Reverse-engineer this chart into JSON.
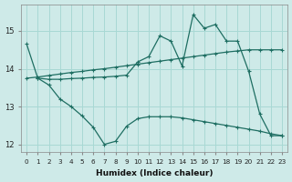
{
  "xlabel": "Humidex (Indice chaleur)",
  "bg_color": "#ceeae8",
  "grid_color": "#a8d8d4",
  "line_color": "#1e6e62",
  "xlim": [
    -0.5,
    23.5
  ],
  "ylim": [
    11.8,
    15.7
  ],
  "yticks": [
    12,
    13,
    14,
    15
  ],
  "xticks": [
    0,
    1,
    2,
    3,
    4,
    5,
    6,
    7,
    8,
    9,
    10,
    11,
    12,
    13,
    14,
    15,
    16,
    17,
    18,
    19,
    20,
    21,
    22,
    23
  ],
  "line1_x": [
    0,
    1,
    2,
    3,
    4,
    5,
    6,
    7,
    8,
    9,
    10,
    11,
    12,
    13,
    14,
    15,
    16,
    17,
    18,
    19,
    20,
    21,
    22,
    23
  ],
  "line1_y": [
    14.65,
    13.75,
    13.72,
    13.72,
    13.74,
    13.75,
    13.77,
    13.78,
    13.8,
    13.83,
    14.18,
    14.32,
    14.87,
    14.73,
    14.07,
    15.43,
    15.07,
    15.17,
    14.73,
    14.73,
    13.93,
    12.8,
    12.23,
    12.23
  ],
  "line2_x": [
    0,
    1,
    2,
    3,
    4,
    5,
    6,
    7,
    8,
    9,
    10,
    11,
    12,
    13,
    14,
    15,
    16,
    17,
    18,
    19,
    20,
    21,
    22,
    23
  ],
  "line2_y": [
    13.75,
    13.78,
    13.82,
    13.86,
    13.9,
    13.93,
    13.97,
    14.0,
    14.04,
    14.08,
    14.12,
    14.16,
    14.2,
    14.24,
    14.28,
    14.32,
    14.36,
    14.4,
    14.44,
    14.47,
    14.5,
    14.5,
    14.5,
    14.5
  ],
  "line3_x": [
    1,
    2,
    3,
    4,
    5,
    6,
    7,
    8,
    9,
    10,
    11,
    12,
    13,
    14,
    15,
    16,
    17,
    18,
    19,
    20,
    21,
    22,
    23
  ],
  "line3_y": [
    13.75,
    13.57,
    13.2,
    13.0,
    12.75,
    12.45,
    12.0,
    12.08,
    12.48,
    12.68,
    12.73,
    12.73,
    12.73,
    12.7,
    12.65,
    12.6,
    12.55,
    12.5,
    12.45,
    12.4,
    12.35,
    12.28,
    12.23
  ]
}
